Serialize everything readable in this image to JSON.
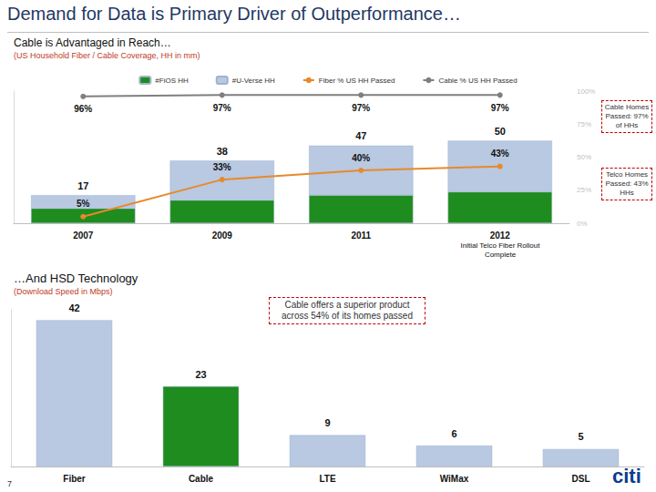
{
  "slide": {
    "title": "Demand for Data is Primary Driver of Outperformance…",
    "page": "7",
    "logo": "citi"
  },
  "chart_data": [
    {
      "type": "bar",
      "title": "Cable is Advantaged in Reach…",
      "subtitle": "(US Household Fiber / Cable Coverage, HH in mm)",
      "categories": [
        "2007",
        "2009",
        "2011",
        "2012"
      ],
      "stacked": true,
      "grid": false,
      "legend": "top",
      "ylim": [
        0,
        80
      ],
      "y2lim": [
        0,
        100
      ],
      "y2ticks": [
        {
          "value": 0,
          "label": "0%"
        },
        {
          "value": 25,
          "label": "25%"
        },
        {
          "value": 50,
          "label": "50%"
        },
        {
          "value": 75,
          "label": "75%"
        },
        {
          "value": 100,
          "label": "100%"
        }
      ],
      "totals": [
        17,
        38,
        47,
        50
      ],
      "series": [
        {
          "name": "#FiOS HH",
          "type": "bar",
          "color": "#1E8C1E",
          "values": [
            9,
            14,
            17,
            19
          ]
        },
        {
          "name": "#U-Verse HH",
          "type": "bar",
          "color": "#B8C9E1",
          "values": [
            8,
            24,
            30,
            31
          ]
        },
        {
          "name": "Fiber % US HH Passed",
          "type": "line",
          "axis": "y2",
          "color": "#E8892B",
          "marker": "circle",
          "data_labels": true,
          "values": [
            5,
            33,
            40,
            43
          ],
          "value_labels": [
            "5%",
            "33%",
            "40%",
            "43%"
          ]
        },
        {
          "name": "Cable % US HH Passed",
          "type": "line",
          "axis": "y2",
          "color": "#7F7F7F",
          "marker": "circle",
          "data_labels": true,
          "values": [
            96,
            97,
            97,
            97
          ],
          "value_labels": [
            "96%",
            "97%",
            "97%",
            "97%"
          ]
        }
      ],
      "annotations": [
        {
          "text": "Cable Homes Passed: 97% of HHs"
        },
        {
          "text": "Telco Homes Passed: 43% HHs"
        },
        {
          "text": "Initial Telco Fiber Rollout Complete"
        }
      ]
    },
    {
      "type": "bar",
      "title": "…And HSD Technology",
      "subtitle": "(Download Speed in Mbps)",
      "categories": [
        "Fiber",
        "Cable",
        "LTE",
        "WiMax",
        "DSL"
      ],
      "values": [
        42,
        23,
        9,
        6,
        5
      ],
      "colors": [
        "#B8C9E1",
        "#1E8C1E",
        "#B8C9E1",
        "#B8C9E1",
        "#B8C9E1"
      ],
      "ylim": [
        0,
        45
      ],
      "grid": false,
      "data_labels": true,
      "annotations": [
        {
          "text": "Cable offers a superior product across 54% of its homes passed"
        }
      ]
    }
  ]
}
